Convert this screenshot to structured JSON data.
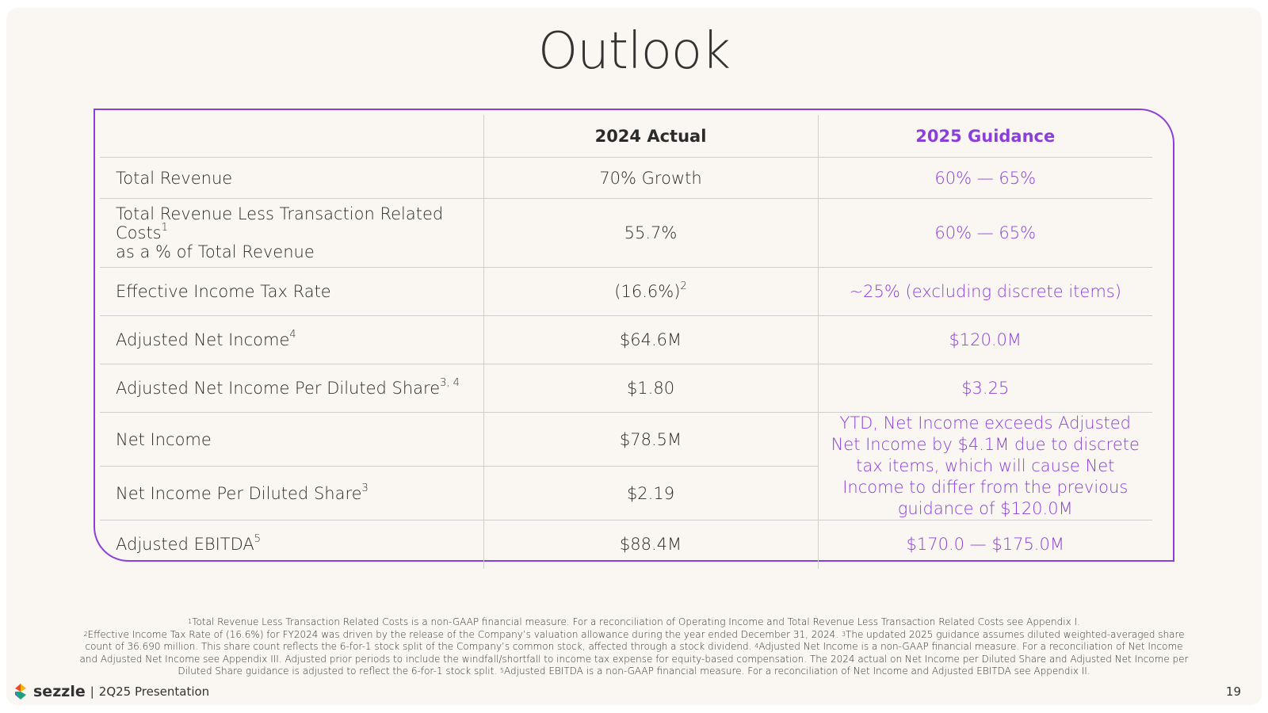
{
  "title": "Outlook",
  "table": {
    "headers": [
      "2024 Actual",
      "2025 Guidance"
    ],
    "rows": [
      {
        "label": "Total Revenue",
        "actual": "70% Growth",
        "guidance": "60% — 65%"
      },
      {
        "label": "Total Revenue Less Transaction Related Costs",
        "label_sup": "1",
        "label_cont": "as a % of Total Revenue",
        "actual": "55.7%",
        "guidance": "60% — 65%"
      },
      {
        "label": "Effective Income Tax Rate",
        "actual": "(16.6%)",
        "actual_sup": "2",
        "guidance": "~25% (excluding discrete items)"
      },
      {
        "label": "Adjusted Net Income",
        "label_sup": "4",
        "actual": "$64.6M",
        "guidance": "$120.0M"
      },
      {
        "label": "Adjusted Net Income Per Diluted Share",
        "label_sup": "3, 4",
        "actual": "$1.80",
        "guidance": "$3.25"
      },
      {
        "label": "Net Income",
        "actual": "$78.5M",
        "guidance": "YTD, Net Income exceeds Adjusted Net Income by $4.1M due to discrete tax items, which will cause Net Income to differ from the previous guidance of $120.0M"
      },
      {
        "label": "Net Income Per Diluted Share",
        "label_sup": "3",
        "actual": "$2.19"
      },
      {
        "label": "Adjusted EBITDA",
        "label_sup": "5",
        "actual": "$88.4M",
        "guidance": "$170.0 — $175.0M"
      }
    ]
  },
  "footnotes": [
    {
      "num": "1",
      "text": "Total Revenue Less Transaction Related Costs is a non-GAAP financial measure. For a reconciliation of Operating Income and Total Revenue Less Transaction Related Costs see Appendix I."
    },
    {
      "num": "2",
      "text": "Effective Income Tax Rate of (16.6%) for FY2024 was driven by the release of the Company’s valuation allowance during the year ended December 31, 2024."
    },
    {
      "num": "3",
      "text": "The updated 2025 guidance assumes diluted weighted-averaged share count of 36.690 million. This share count reflects the 6-for-1 stock split of the Company’s common stock, affected through a stock dividend."
    },
    {
      "num": "4",
      "text": "Adjusted Net Income is a non-GAAP financial measure. For a reconciliation of Net Income and Adjusted Net Income see Appendix III. Adjusted prior periods to include the windfall/shortfall to income tax expense for equity-based compensation. The 2024 actual on Net Income per Diluted Share and Adjusted Net Income per Diluted Share guidance is adjusted to reflect the 6-for-1 stock split."
    },
    {
      "num": "5",
      "text": "Adjusted EBITDA is a non-GAAP financial measure. For a reconciliation of Net Income and Adjusted EBITDA see Appendix II."
    }
  ],
  "footer": {
    "brand": "sezzle",
    "separator": "|",
    "presentation": "2Q25 Presentation",
    "page": "19"
  }
}
